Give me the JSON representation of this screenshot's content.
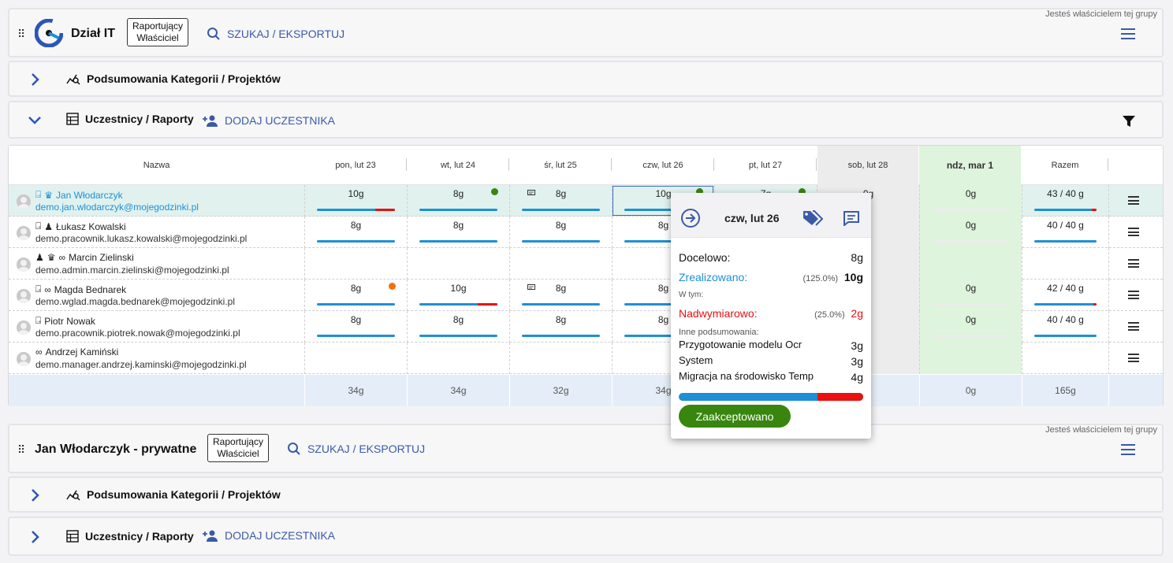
{
  "group1": {
    "owner_note": "Jesteś właścicielem tej grupy",
    "title": "Dział IT",
    "role_line1": "Raportujący",
    "role_line2": "Właściciel",
    "search_label": "SZUKAJ / EKSPORTUJ"
  },
  "section_summary": {
    "label": "Podsumowania Kategorii / Projektów"
  },
  "section_participants": {
    "label": "Uczestnicy / Raporty",
    "add_label": "DODAJ UCZESTNIKA"
  },
  "table": {
    "columns": [
      "Nazwa",
      "pon, lut 23",
      "wt, lut 24",
      "śr, lut 25",
      "czw, lut 26",
      "pt, lut 27",
      "sob, lut 28",
      "ndz, mar 1",
      "Razem"
    ],
    "rows": [
      {
        "name": "Jan  Włodarczyk",
        "email": "demo.jan.wlodarczyk@mojegodzinki.pl",
        "d1": "10g",
        "d2": "8g",
        "d3": "8g",
        "d4": "10g",
        "d5": "7g",
        "d6": "0g",
        "d7": "0g",
        "total": "43 / 40 g"
      },
      {
        "name": "Łukasz Kowalski",
        "email": "demo.pracownik.lukasz.kowalski@mojegodzinki.pl",
        "d1": "8g",
        "d2": "8g",
        "d3": "8g",
        "d4": "8g",
        "d5": "",
        "d6": "",
        "d7": "0g",
        "total": "40 / 40 g"
      },
      {
        "name": "Marcin  Zielinski",
        "email": "demo.admin.marcin.zielinski@mojegodzinki.pl",
        "d1": "",
        "d2": "",
        "d3": "",
        "d4": "",
        "d5": "",
        "d6": "",
        "d7": "",
        "total": ""
      },
      {
        "name": "Magda  Bednarek",
        "email": "demo.wglad.magda.bednarek@mojegodzinki.pl",
        "d1": "8g",
        "d2": "10g",
        "d3": "8g",
        "d4": "8g",
        "d5": "",
        "d6": "",
        "d7": "0g",
        "total": "42 / 40 g"
      },
      {
        "name": "Piotr Nowak",
        "email": "demo.pracownik.piotrek.nowak@mojegodzinki.pl",
        "d1": "8g",
        "d2": "8g",
        "d3": "8g",
        "d4": "8g",
        "d5": "",
        "d6": "",
        "d7": "0g",
        "total": "40 / 40 g"
      },
      {
        "name": "Andrzej Kamiński",
        "email": "demo.manager.andrzej.kaminski@mojegodzinki.pl",
        "d1": "",
        "d2": "",
        "d3": "",
        "d4": "",
        "d5": "",
        "d6": "",
        "d7": "",
        "total": ""
      }
    ],
    "totals": {
      "d1": "34g",
      "d2": "34g",
      "d3": "32g",
      "d4": "34g",
      "d5": "",
      "d6": "",
      "d7": "0g",
      "total": "165g"
    }
  },
  "popup": {
    "date": "czw, lut 26",
    "target_label": "Docelowo:",
    "target_value": "8g",
    "realized_label": "Zrealizowano:",
    "realized_pct": "(125.0%)",
    "realized_value": "10g",
    "including_label": "W tym:",
    "overtime_label": "Nadwymiarowo:",
    "overtime_pct": "(25.0%)",
    "overtime_value": "2g",
    "other_label": "Inne podsumowania:",
    "items": [
      {
        "label": "Przygotowanie modelu Ocr",
        "value": "3g"
      },
      {
        "label": "System",
        "value": "3g"
      },
      {
        "label": "Migracja na środowisko Temp",
        "value": "4g"
      }
    ],
    "accept_label": "Zaakceptowano"
  },
  "group2": {
    "owner_note": "Jesteś właścicielem tej grupy",
    "title": "Jan Włodarczyk - prywatne",
    "role_line1": "Raportujący",
    "role_line2": "Właściciel",
    "search_label": "SZUKAJ / EKSPORTUJ"
  },
  "colors": {
    "accent": "#3a5aa8",
    "bar": "#1e8fd6",
    "over": "#e81010",
    "accept": "#38860e",
    "highlight_row": "#e1f2ee"
  }
}
